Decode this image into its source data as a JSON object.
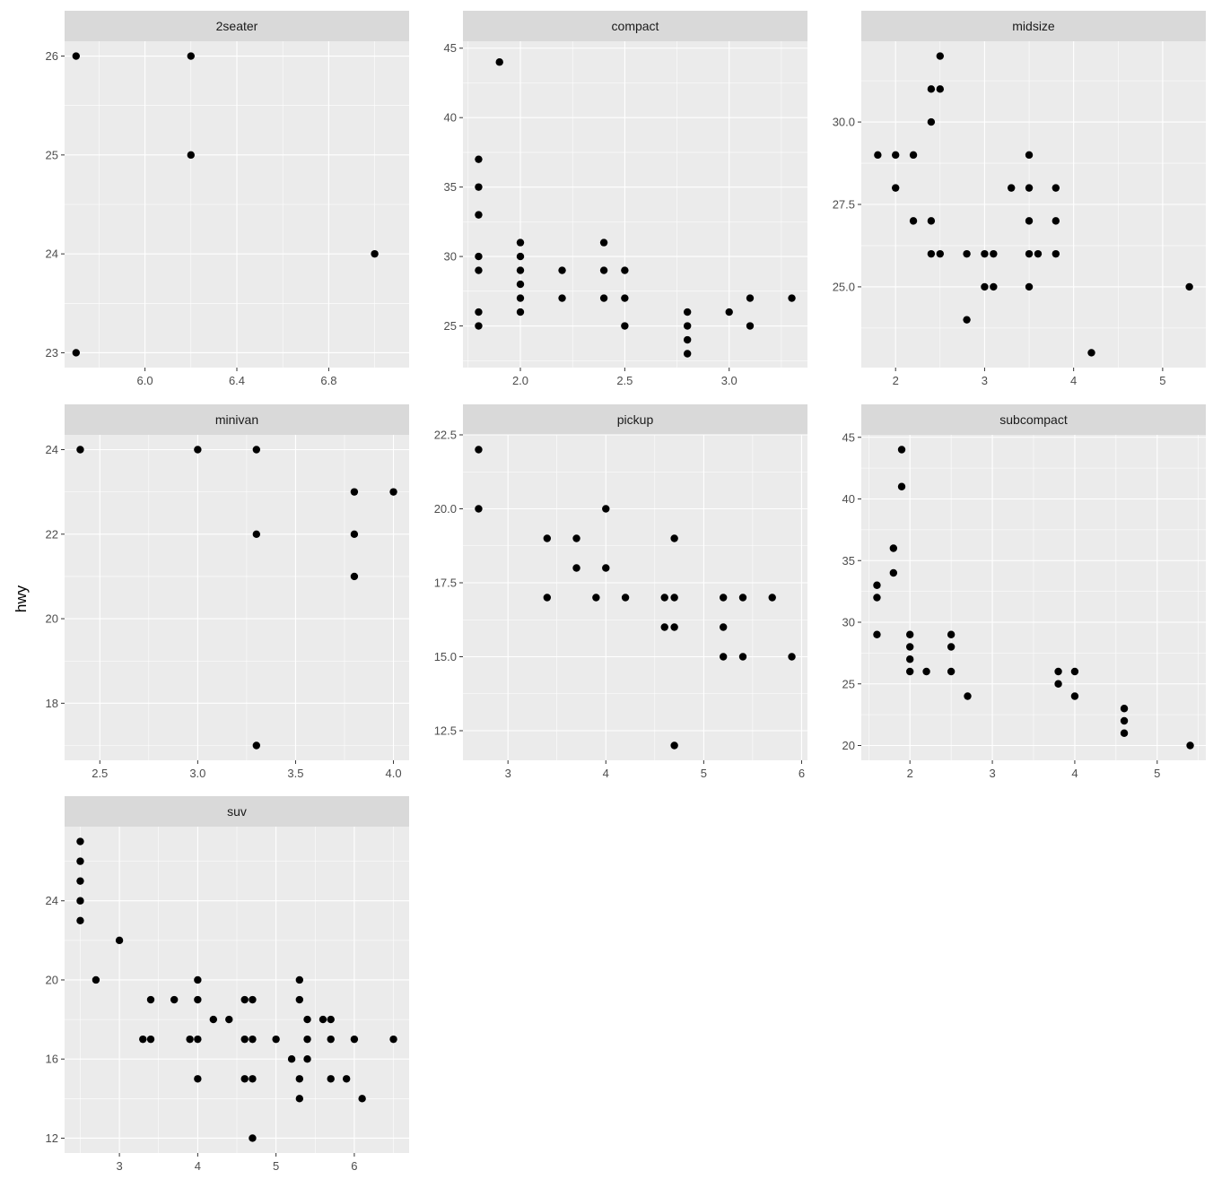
{
  "chart_data": {
    "type": "scatter",
    "ylabel": "hwy",
    "xlabel": "",
    "grid": true,
    "facets": [
      {
        "name": "2seater",
        "xlim": [
          5.65,
          7.15
        ],
        "ylim": [
          22.85,
          26.15
        ],
        "xticks": [
          6.0,
          6.4,
          6.8
        ],
        "xtick_labels": [
          "6.0",
          "6.4",
          "6.8"
        ],
        "yticks": [
          23,
          24,
          25,
          26
        ],
        "ytick_labels": [
          "23",
          "24",
          "25",
          "26"
        ],
        "points": [
          [
            5.7,
            26
          ],
          [
            5.7,
            23
          ],
          [
            6.2,
            26
          ],
          [
            6.2,
            25
          ],
          [
            7.0,
            24
          ]
        ]
      },
      {
        "name": "compact",
        "xlim": [
          1.725,
          3.375
        ],
        "ylim": [
          22.0,
          45.5
        ],
        "xticks": [
          2.0,
          2.5,
          3.0
        ],
        "xtick_labels": [
          "2.0",
          "2.5",
          "3.0"
        ],
        "yticks": [
          25,
          30,
          35,
          40,
          45
        ],
        "ytick_labels": [
          "25",
          "30",
          "35",
          "40",
          "45"
        ],
        "points": [
          [
            1.8,
            37
          ],
          [
            1.8,
            35
          ],
          [
            1.8,
            33
          ],
          [
            1.8,
            30
          ],
          [
            1.8,
            29
          ],
          [
            1.8,
            26
          ],
          [
            1.8,
            25
          ],
          [
            1.9,
            44
          ],
          [
            2.0,
            31
          ],
          [
            2.0,
            30
          ],
          [
            2.0,
            29
          ],
          [
            2.0,
            28
          ],
          [
            2.0,
            27
          ],
          [
            2.0,
            26
          ],
          [
            2.2,
            29
          ],
          [
            2.2,
            27
          ],
          [
            2.4,
            31
          ],
          [
            2.4,
            29
          ],
          [
            2.4,
            27
          ],
          [
            2.5,
            29
          ],
          [
            2.5,
            27
          ],
          [
            2.5,
            25
          ],
          [
            2.8,
            26
          ],
          [
            2.8,
            25
          ],
          [
            2.8,
            24
          ],
          [
            2.8,
            23
          ],
          [
            3.0,
            26
          ],
          [
            3.1,
            27
          ],
          [
            3.1,
            25
          ],
          [
            3.3,
            27
          ]
        ]
      },
      {
        "name": "midsize",
        "xlim": [
          1.615,
          5.485
        ],
        "ylim": [
          22.55,
          32.45
        ],
        "xticks": [
          2,
          3,
          4,
          5
        ],
        "xtick_labels": [
          "2",
          "3",
          "4",
          "5"
        ],
        "yticks": [
          25.0,
          27.5,
          30.0
        ],
        "ytick_labels": [
          "25.0",
          "27.5",
          "30.0"
        ],
        "points": [
          [
            1.8,
            29
          ],
          [
            2.0,
            29
          ],
          [
            2.0,
            28
          ],
          [
            2.2,
            29
          ],
          [
            2.2,
            27
          ],
          [
            2.4,
            31
          ],
          [
            2.4,
            30
          ],
          [
            2.4,
            27
          ],
          [
            2.4,
            26
          ],
          [
            2.5,
            32
          ],
          [
            2.5,
            31
          ],
          [
            2.5,
            26
          ],
          [
            2.8,
            26
          ],
          [
            2.8,
            24
          ],
          [
            3.0,
            26
          ],
          [
            3.0,
            25
          ],
          [
            3.1,
            26
          ],
          [
            3.1,
            25
          ],
          [
            3.3,
            28
          ],
          [
            3.5,
            29
          ],
          [
            3.5,
            28
          ],
          [
            3.5,
            27
          ],
          [
            3.5,
            26
          ],
          [
            3.5,
            25
          ],
          [
            3.6,
            26
          ],
          [
            3.8,
            28
          ],
          [
            3.8,
            27
          ],
          [
            3.8,
            26
          ],
          [
            4.2,
            23
          ],
          [
            5.3,
            25
          ]
        ]
      },
      {
        "name": "minivan",
        "xlim": [
          2.32,
          4.08
        ],
        "ylim": [
          16.65,
          24.35
        ],
        "xticks": [
          2.5,
          3.0,
          3.5,
          4.0
        ],
        "xtick_labels": [
          "2.5",
          "3.0",
          "3.5",
          "4.0"
        ],
        "yticks": [
          18,
          20,
          22,
          24
        ],
        "ytick_labels": [
          "18",
          "20",
          "22",
          "24"
        ],
        "points": [
          [
            2.4,
            24
          ],
          [
            3.0,
            24
          ],
          [
            3.3,
            24
          ],
          [
            3.3,
            22
          ],
          [
            3.3,
            17
          ],
          [
            3.8,
            23
          ],
          [
            3.8,
            22
          ],
          [
            3.8,
            21
          ],
          [
            4.0,
            23
          ]
        ]
      },
      {
        "name": "pickup",
        "xlim": [
          2.54,
          6.06
        ],
        "ylim": [
          11.5,
          22.5
        ],
        "xticks": [
          3,
          4,
          5,
          6
        ],
        "xtick_labels": [
          "3",
          "4",
          "5",
          "6"
        ],
        "yticks": [
          12.5,
          15.0,
          17.5,
          20.0,
          22.5
        ],
        "ytick_labels": [
          "12.5",
          "15.0",
          "17.5",
          "20.0",
          "22.5"
        ],
        "points": [
          [
            2.7,
            22
          ],
          [
            2.7,
            20
          ],
          [
            3.4,
            19
          ],
          [
            3.4,
            17
          ],
          [
            3.7,
            19
          ],
          [
            3.7,
            18
          ],
          [
            3.9,
            17
          ],
          [
            4.0,
            20
          ],
          [
            4.0,
            18
          ],
          [
            4.2,
            17
          ],
          [
            4.6,
            17
          ],
          [
            4.6,
            16
          ],
          [
            4.7,
            19
          ],
          [
            4.7,
            17
          ],
          [
            4.7,
            16
          ],
          [
            4.7,
            12
          ],
          [
            5.2,
            17
          ],
          [
            5.2,
            16
          ],
          [
            5.2,
            15
          ],
          [
            5.4,
            17
          ],
          [
            5.4,
            15
          ],
          [
            5.7,
            17
          ],
          [
            5.9,
            15
          ]
        ]
      },
      {
        "name": "subcompact",
        "xlim": [
          1.41,
          5.59
        ],
        "ylim": [
          18.8,
          45.2
        ],
        "xticks": [
          2,
          3,
          4,
          5
        ],
        "xtick_labels": [
          "2",
          "3",
          "4",
          "5"
        ],
        "yticks": [
          20,
          25,
          30,
          35,
          40,
          45
        ],
        "ytick_labels": [
          "20",
          "25",
          "30",
          "35",
          "40",
          "45"
        ],
        "points": [
          [
            1.6,
            33
          ],
          [
            1.6,
            32
          ],
          [
            1.6,
            29
          ],
          [
            1.8,
            36
          ],
          [
            1.8,
            34
          ],
          [
            1.9,
            44
          ],
          [
            1.9,
            41
          ],
          [
            2.0,
            29
          ],
          [
            2.0,
            28
          ],
          [
            2.0,
            27
          ],
          [
            2.0,
            26
          ],
          [
            2.2,
            26
          ],
          [
            2.5,
            29
          ],
          [
            2.5,
            28
          ],
          [
            2.5,
            26
          ],
          [
            2.7,
            24
          ],
          [
            3.8,
            26
          ],
          [
            3.8,
            25
          ],
          [
            4.0,
            26
          ],
          [
            4.0,
            24
          ],
          [
            4.6,
            23
          ],
          [
            4.6,
            22
          ],
          [
            4.6,
            21
          ],
          [
            5.4,
            20
          ]
        ]
      },
      {
        "name": "suv",
        "xlim": [
          2.3,
          6.7
        ],
        "ylim": [
          11.25,
          27.75
        ],
        "xticks": [
          3,
          4,
          5,
          6
        ],
        "xtick_labels": [
          "3",
          "4",
          "5",
          "6"
        ],
        "yticks": [
          12,
          16,
          20,
          24
        ],
        "ytick_labels": [
          "12",
          "16",
          "20",
          "24"
        ],
        "points": [
          [
            2.5,
            27
          ],
          [
            2.5,
            26
          ],
          [
            2.5,
            25
          ],
          [
            2.5,
            24
          ],
          [
            2.5,
            23
          ],
          [
            2.7,
            20
          ],
          [
            3.0,
            22
          ],
          [
            3.3,
            17
          ],
          [
            3.4,
            19
          ],
          [
            3.4,
            17
          ],
          [
            3.7,
            19
          ],
          [
            3.9,
            17
          ],
          [
            4.0,
            20
          ],
          [
            4.0,
            19
          ],
          [
            4.0,
            17
          ],
          [
            4.0,
            15
          ],
          [
            4.2,
            18
          ],
          [
            4.4,
            18
          ],
          [
            4.6,
            19
          ],
          [
            4.6,
            17
          ],
          [
            4.6,
            15
          ],
          [
            4.7,
            19
          ],
          [
            4.7,
            17
          ],
          [
            4.7,
            15
          ],
          [
            4.7,
            12
          ],
          [
            5.0,
            17
          ],
          [
            5.2,
            16
          ],
          [
            5.3,
            20
          ],
          [
            5.3,
            19
          ],
          [
            5.3,
            15
          ],
          [
            5.3,
            14
          ],
          [
            5.4,
            18
          ],
          [
            5.4,
            17
          ],
          [
            5.4,
            16
          ],
          [
            5.6,
            18
          ],
          [
            5.7,
            18
          ],
          [
            5.7,
            17
          ],
          [
            5.7,
            15
          ],
          [
            5.9,
            15
          ],
          [
            6.0,
            17
          ],
          [
            6.1,
            14
          ],
          [
            6.5,
            17
          ]
        ]
      }
    ]
  }
}
